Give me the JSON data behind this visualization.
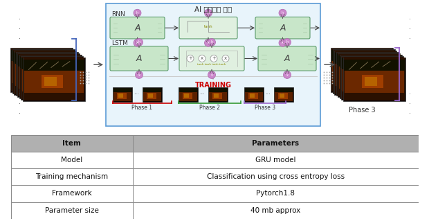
{
  "title_top": "AI 인공지능 모델",
  "phase3_label": "Phase 3",
  "rnn_label": "RNN",
  "lstm_label": "LSTM",
  "training_label": "TRAINING",
  "phase_labels": [
    "Phase 1",
    "Phase 2",
    "Phase 3"
  ],
  "table_header": [
    "Item",
    "Parameters"
  ],
  "table_rows": [
    [
      "Model",
      "GRU model"
    ],
    [
      "Training mechanism",
      "Classification using cross entropy loss"
    ],
    [
      "Framework",
      "Pytorch1.8"
    ],
    [
      "Parameter size",
      "40 mb approx"
    ]
  ],
  "header_bg": "#b0b0b0",
  "row_bg": "#ffffff",
  "table_border": "#888888",
  "outer_box_fill": "#e8f4fb",
  "outer_box_border": "#5b9bd5",
  "phase1_color": "#cc0000",
  "phase2_color": "#339933",
  "phase3_color": "#9966cc",
  "node_fill": "#c8e6c9",
  "node_border": "#5a9a6a",
  "mid_fill": "#e0f0e0",
  "circle_color": "#cc88cc",
  "circle_border": "#aa66aa",
  "img_dark": "#1a0a00",
  "img_mid": "#5a2a00",
  "img_light": "#aa5500",
  "bracket_left_color": "#4466bb",
  "bracket_right_color": "#9966cc",
  "arrow_color": "#555555",
  "dot_color": "#888888",
  "sep_line_color": "#cccccc",
  "training_arrow_color": "#aaaaaa"
}
